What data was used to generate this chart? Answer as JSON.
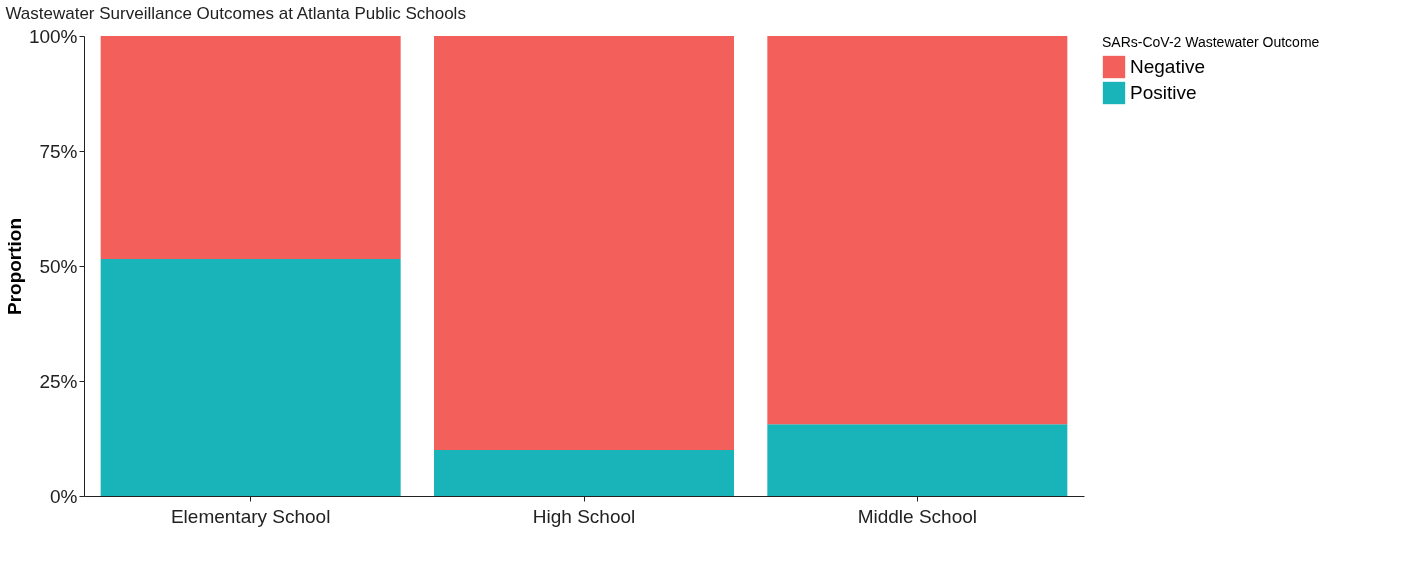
{
  "chart_data": {
    "type": "bar",
    "title": "Wastewater Surveillance Outcomes at Atlanta Public Schools",
    "ylabel": "Proportion",
    "legend_title": "SARs-CoV-2 Wastewater Outcome",
    "categories": [
      "Elementary School",
      "High School",
      "Middle School"
    ],
    "stacked": true,
    "series": [
      {
        "name": "Positive",
        "color": "#19b4b9",
        "values": [
          51.5,
          10,
          15.6
        ]
      },
      {
        "name": "Negative",
        "color": "#f35f5b",
        "values": [
          48.5,
          90,
          84.4
        ]
      }
    ],
    "ylim": [
      0,
      100
    ],
    "yticks": [
      {
        "value": 0,
        "label": "0%"
      },
      {
        "value": 25,
        "label": "25%"
      },
      {
        "value": 50,
        "label": "50%"
      },
      {
        "value": 75,
        "label": "75%"
      },
      {
        "value": 100,
        "label": "100%"
      }
    ],
    "grid": false,
    "legend": "right"
  }
}
